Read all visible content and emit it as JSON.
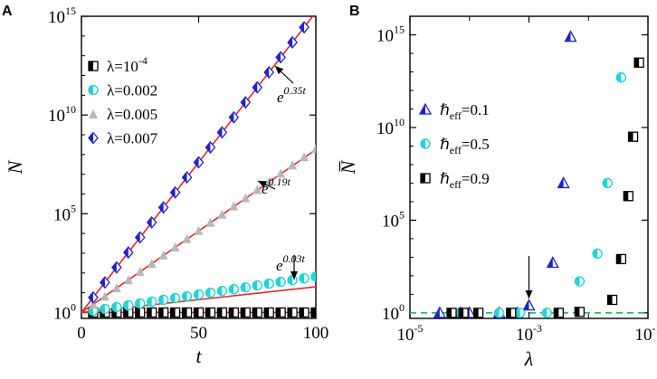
{
  "chart_data": [
    {
      "panel": "A",
      "type": "scatter",
      "xlabel": "t",
      "ylabel": "N",
      "yscale": "log",
      "xlim": [
        0,
        100
      ],
      "ylim_exp": [
        -0.3,
        15
      ],
      "xticks": [
        {
          "value": 0,
          "label": "0"
        },
        {
          "value": 50,
          "label": "50"
        },
        {
          "value": 100,
          "label": "100"
        }
      ],
      "yticks": [
        {
          "exp": 0,
          "base": "10",
          "sup": "0"
        },
        {
          "exp": 5,
          "base": "10",
          "sup": "5"
        },
        {
          "exp": 10,
          "base": "10",
          "sup": "10"
        },
        {
          "exp": 15,
          "base": "10",
          "sup": "15"
        }
      ],
      "series": [
        {
          "name": "λ=10",
          "name_sup": "-4",
          "marker": "square-half",
          "color": "#000000",
          "x": [
            5,
            10,
            15,
            20,
            25,
            30,
            35,
            40,
            45,
            50,
            55,
            60,
            65,
            70,
            75,
            80,
            85,
            90,
            95,
            100
          ],
          "y_exp": [
            0,
            0,
            0,
            0,
            0,
            0,
            0,
            0,
            0,
            0,
            0,
            0,
            0,
            0,
            0,
            0,
            0,
            0,
            0,
            0
          ]
        },
        {
          "name": "λ=0.002",
          "marker": "circle-half",
          "color": "#22d3d8",
          "x": [
            5,
            10,
            15,
            20,
            25,
            30,
            35,
            40,
            45,
            50,
            55,
            60,
            65,
            70,
            75,
            80,
            85,
            90,
            95,
            100
          ],
          "y_exp": [
            0.09,
            0.18,
            0.27,
            0.36,
            0.46,
            0.55,
            0.64,
            0.73,
            0.82,
            0.91,
            1.0,
            1.09,
            1.18,
            1.27,
            1.37,
            1.46,
            1.55,
            1.64,
            1.73,
            1.82
          ]
        },
        {
          "name": "λ=0.005",
          "marker": "triangle",
          "color": "#b8b8b8",
          "x": [
            5,
            10,
            15,
            20,
            25,
            30,
            35,
            40,
            45,
            50,
            55,
            60,
            65,
            70,
            75,
            80,
            85,
            90,
            95,
            100
          ],
          "y_exp": [
            0.42,
            0.83,
            1.25,
            1.66,
            2.08,
            2.49,
            2.91,
            3.32,
            3.74,
            4.15,
            4.57,
            4.98,
            5.4,
            5.81,
            6.23,
            6.64,
            7.06,
            7.47,
            7.89,
            8.3
          ]
        },
        {
          "name": "λ=0.007",
          "marker": "diamond-half",
          "color": "#2222cc",
          "x": [
            5,
            10,
            15,
            20,
            25,
            30,
            35,
            40,
            45,
            50,
            55,
            60,
            65,
            70,
            75,
            80,
            85,
            90,
            95,
            100
          ],
          "y_exp": [
            0.76,
            1.52,
            2.28,
            3.04,
            3.8,
            4.56,
            5.32,
            6.08,
            6.84,
            7.6,
            8.36,
            9.12,
            9.88,
            10.64,
            11.4,
            12.16,
            12.92,
            13.68,
            14.44,
            15.2
          ]
        }
      ],
      "fits": [
        {
          "label_base": "e",
          "label_sup": "0.35t",
          "slope_exp": 0.152
        },
        {
          "label_base": "e",
          "label_sup": "0.19t",
          "slope_exp": 0.0825
        },
        {
          "label_base": "e",
          "label_sup": "0.03t",
          "slope_exp": 0.013
        }
      ],
      "fit_color": "#e8272a"
    },
    {
      "panel": "B",
      "type": "scatter",
      "xlabel": "λ",
      "ylabel": "N̅",
      "xscale": "log",
      "yscale": "log",
      "xlim_exp": [
        -5,
        -1
      ],
      "ylim_exp": [
        -0.3,
        16
      ],
      "xticks": [
        {
          "exp": -5,
          "base": "10",
          "sup": "-5"
        },
        {
          "exp": -3,
          "base": "10",
          "sup": "-3"
        },
        {
          "exp": -1,
          "base": "10",
          "sup": "-1"
        }
      ],
      "yticks": [
        {
          "exp": 0,
          "base": "10",
          "sup": "0"
        },
        {
          "exp": 5,
          "base": "10",
          "sup": "5"
        },
        {
          "exp": 10,
          "base": "10",
          "sup": "10"
        },
        {
          "exp": 15,
          "base": "10",
          "sup": "15"
        }
      ],
      "series": [
        {
          "name_pre": "ℏ",
          "name_sub": "eff",
          "name_post": "=0.1",
          "marker": "triangle-half",
          "color": "#2222cc",
          "x_exp": [
            -4.5,
            -4.15,
            -4,
            -3.5,
            -3.2,
            -3,
            -2.6,
            -2.42,
            -2.3
          ],
          "y_exp": [
            0,
            0,
            0,
            0,
            0,
            0.4,
            2.7,
            7,
            14.9
          ]
        },
        {
          "name_pre": "ℏ",
          "name_sub": "eff",
          "name_post": "=0.5",
          "marker": "circle-half",
          "color": "#22d3d8",
          "x_exp": [
            -4.15,
            -3.5,
            -3.15,
            -2.7,
            -2.5,
            -2.15,
            -1.85,
            -1.68,
            -1.45
          ],
          "y_exp": [
            0,
            0,
            0,
            0,
            0,
            1.7,
            3.2,
            7,
            12.7
          ]
        },
        {
          "name_pre": "ℏ",
          "name_sub": "eff",
          "name_post": "=0.9",
          "marker": "square-half",
          "color": "#000000",
          "x_exp": [
            -4.3,
            -4.1,
            -3.85,
            -3.3,
            -2.5,
            -2.15,
            -1.6,
            -1.45,
            -1.33,
            -1.25,
            -1.15
          ],
          "y_exp": [
            0,
            0,
            0,
            0,
            0,
            0.05,
            0.7,
            2.9,
            6.3,
            9.5,
            13.5
          ]
        }
      ],
      "reference_line": {
        "y_exp": 0,
        "color": "#22c55e",
        "style": "dashed"
      },
      "arrow_at_x_exp": -3
    }
  ]
}
